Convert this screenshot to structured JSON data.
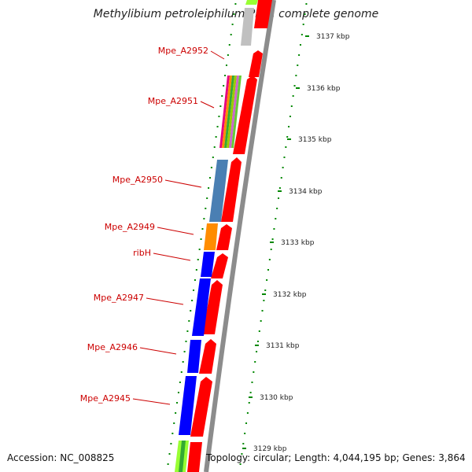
{
  "title": "Methylibium petroleiphilum PM1, complete genome",
  "footer": {
    "accession": "Accession: NC_008825",
    "topology": "Topology: circular; Length: 4,044,195 bp; Genes: 3,864"
  },
  "colors": {
    "label": "#cc0000",
    "cds_track": "#ff0000",
    "blue": "#0000ff",
    "steelblue": "#4a7fb3",
    "orange": "#ff8c00",
    "grey": "#c0c0c0",
    "lime": "#99ff33",
    "green_dots": "#008800"
  },
  "gene_labels": [
    "Mpe_A2952",
    "Mpe_A2951",
    "Mpe_A2950",
    "Mpe_A2949",
    "ribH",
    "Mpe_A2947",
    "Mpe_A2946",
    "Mpe_A2945"
  ],
  "scale_labels": [
    "3137 kbp",
    "3136 kbp",
    "3135 kbp",
    "3134 kbp",
    "3133 kbp",
    "3132 kbp",
    "3131 kbp",
    "3130 kbp",
    "3129 kbp"
  ]
}
